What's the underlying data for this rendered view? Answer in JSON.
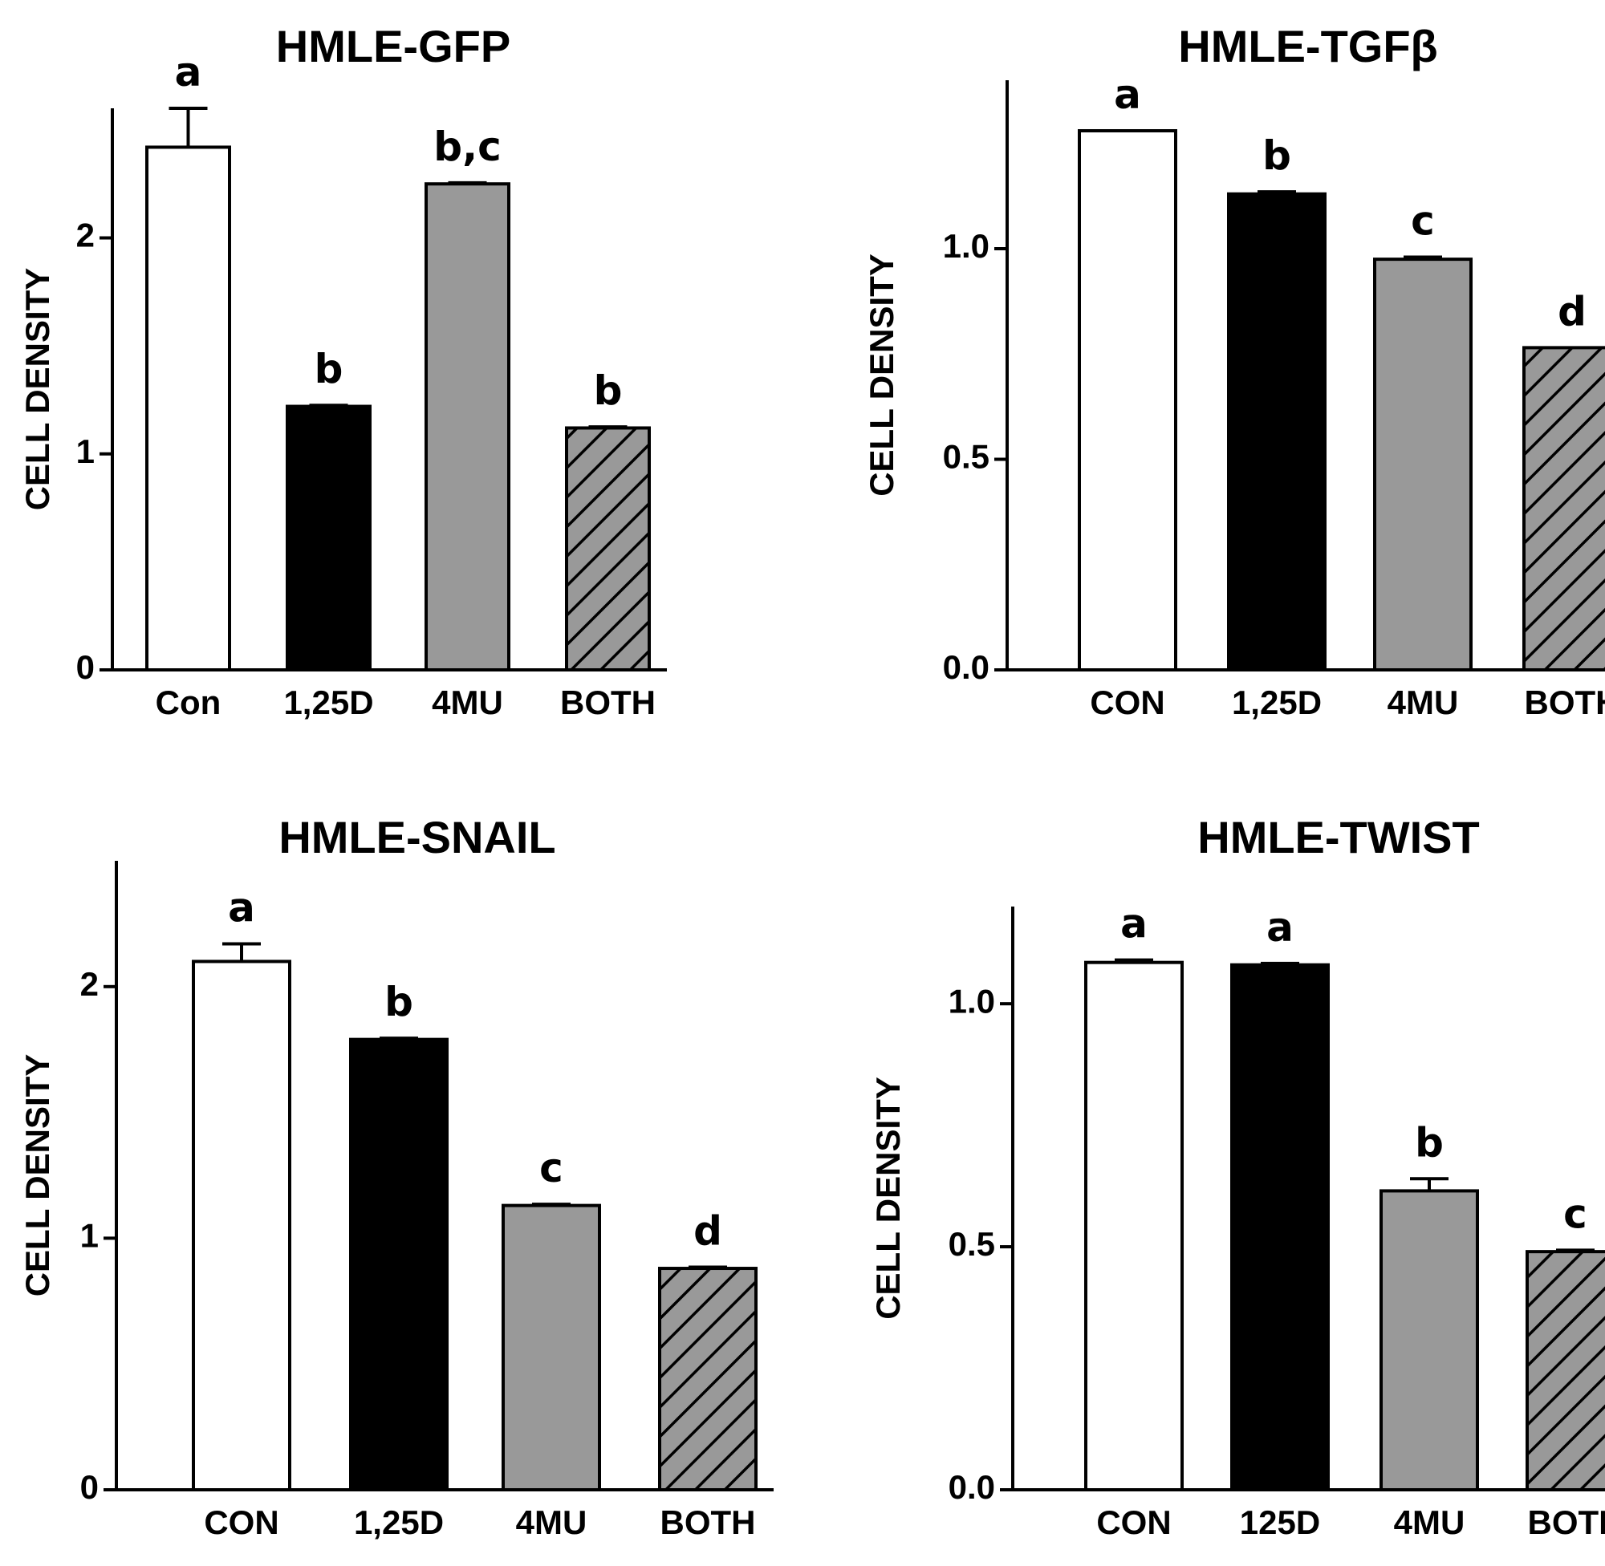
{
  "colors": {
    "CON": "#ffffff",
    "125D": "#000000",
    "4MU": "#999999",
    "BOTH": "#999999",
    "axis": "#000000"
  },
  "chart_data": [
    {
      "type": "bar",
      "title": "HMLE-GFP",
      "ylabel": "CELL DENSITY",
      "ylim": [
        0,
        2.6
      ],
      "yticks": [
        {
          "value": 0,
          "label": "0"
        },
        {
          "value": 1,
          "label": "1"
        },
        {
          "value": 2,
          "label": "2"
        }
      ],
      "categories": [
        "Con",
        "1,25D",
        "4MU",
        "BOTH"
      ],
      "values": [
        2.42,
        1.22,
        2.25,
        1.12
      ],
      "errors": [
        0.18,
        0.005,
        0.005,
        0.005
      ],
      "significance": [
        "a",
        "b",
        "b,c",
        "b"
      ],
      "fills": [
        "white",
        "black",
        "gray",
        "hatched"
      ]
    },
    {
      "type": "bar",
      "title": "HMLE-TGFβ",
      "ylabel": "CELL DENSITY",
      "ylim": [
        0,
        1.4
      ],
      "yticks": [
        {
          "value": 0,
          "label": "0.0"
        },
        {
          "value": 0.5,
          "label": "0.5"
        },
        {
          "value": 1.0,
          "label": "1.0"
        }
      ],
      "categories": [
        "CON",
        "1,25D",
        "4MU",
        "BOTH"
      ],
      "values": [
        1.28,
        1.13,
        0.975,
        0.765
      ],
      "errors": [
        0.0,
        0.005,
        0.005,
        0.0
      ],
      "significance": [
        "a",
        "b",
        "c",
        "d"
      ],
      "fills": [
        "white",
        "black",
        "gray",
        "hatched"
      ]
    },
    {
      "type": "bar",
      "title": "HMLE-SNAIL",
      "ylabel": "CELL DENSITY",
      "ylim": [
        0,
        2.5
      ],
      "yticks": [
        {
          "value": 0,
          "label": "0"
        },
        {
          "value": 1,
          "label": "1"
        },
        {
          "value": 2,
          "label": "2"
        }
      ],
      "categories": [
        "CON",
        "1,25D",
        "4MU",
        "BOTH"
      ],
      "values": [
        2.1,
        1.79,
        1.13,
        0.88
      ],
      "errors": [
        0.07,
        0.005,
        0.005,
        0.005
      ],
      "significance": [
        "a",
        "b",
        "c",
        "d"
      ],
      "fills": [
        "white",
        "black",
        "gray",
        "hatched"
      ]
    },
    {
      "type": "bar",
      "title": "HMLE-TWIST",
      "ylabel": "CELL DENSITY",
      "ylim": [
        0,
        1.2
      ],
      "yticks": [
        {
          "value": 0,
          "label": "0.0"
        },
        {
          "value": 0.5,
          "label": "0.5"
        },
        {
          "value": 1.0,
          "label": "1.0"
        }
      ],
      "categories": [
        "CON",
        "125D",
        "4MU",
        "BOTH"
      ],
      "values": [
        1.085,
        1.08,
        0.615,
        0.49
      ],
      "errors": [
        0.005,
        0.003,
        0.025,
        0.003
      ],
      "significance": [
        "a",
        "a",
        "b",
        "c"
      ],
      "fills": [
        "white",
        "black",
        "gray",
        "hatched"
      ]
    }
  ]
}
